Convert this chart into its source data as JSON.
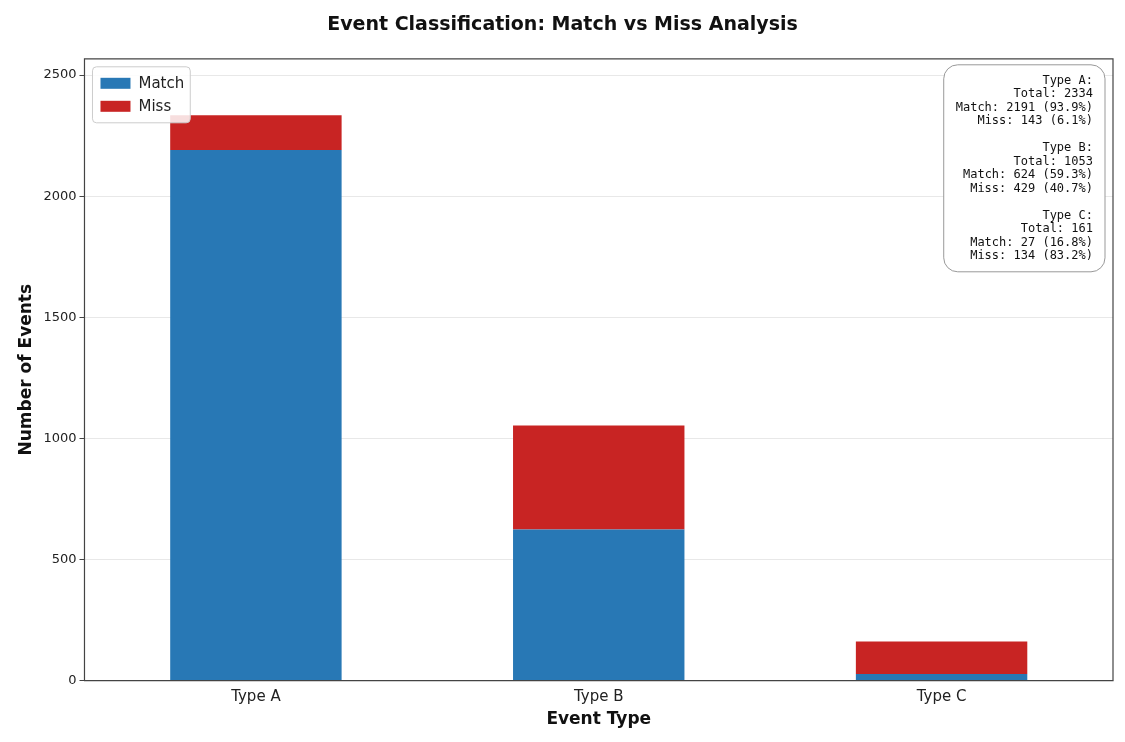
{
  "chart_data": {
    "type": "bar",
    "title": "Event Classification: Match vs Miss Analysis",
    "xlabel": "Event Type",
    "ylabel": "Number of Events",
    "categories": [
      "Type A",
      "Type B",
      "Type C"
    ],
    "stacked": true,
    "series": [
      {
        "name": "Match",
        "color": "#2878b5",
        "values": [
          2191,
          624,
          27
        ]
      },
      {
        "name": "Miss",
        "color": "#c82423",
        "values": [
          143,
          429,
          134
        ]
      }
    ],
    "ylim": [
      0,
      2567
    ],
    "yticks": [
      0,
      500,
      1000,
      1500,
      2000,
      2500
    ],
    "grid": "y",
    "legend": "top left",
    "annotations": [
      "Type A:\nTotal: 2334\nMatch: 2191 (93.9%)\nMiss: 143 (6.1%)\n\nType B:\nTotal: 1053\nMatch: 624 (59.3%)\nMiss: 429 (40.7%)\n\nType C:\nTotal: 161\nMatch: 27 (16.8%)\nMiss: 134 (83.2%)"
    ]
  }
}
